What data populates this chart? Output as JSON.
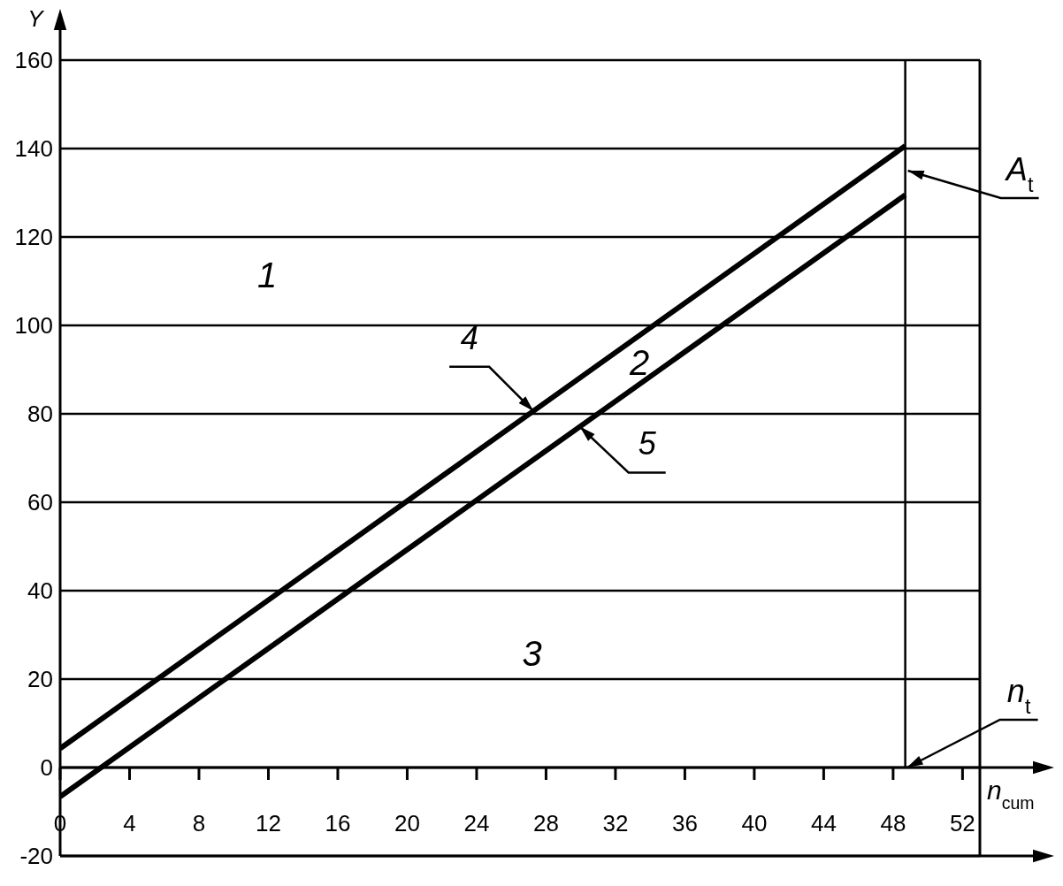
{
  "chart_data": {
    "type": "line",
    "xlabel": "n$_{cum}$",
    "ylabel": "Y",
    "x": [
      0,
      48.7
    ],
    "series": [
      {
        "name": "4",
        "color": "#000000",
        "values": [
          4.3,
          140.6
        ]
      },
      {
        "name": "5",
        "color": "#000000",
        "values": [
          -6.6,
          129.5
        ]
      }
    ],
    "xlim": [
      0,
      53
    ],
    "xticks": [
      0,
      4,
      8,
      12,
      16,
      20,
      24,
      28,
      32,
      36,
      40,
      44,
      48,
      52
    ],
    "ylim": [
      -20,
      160
    ],
    "yticks": [
      -20,
      0,
      20,
      40,
      60,
      80,
      100,
      120,
      140,
      160
    ],
    "grid": "y",
    "ref_lines": [
      {
        "axis": "x",
        "value": 48.7,
        "label": "n$_{t}$",
        "color": "#000000"
      }
    ],
    "annotations": [
      "1",
      "2",
      "3",
      {
        "text": "A$_{t}$",
        "x": 48.7,
        "y": 135
      }
    ]
  }
}
